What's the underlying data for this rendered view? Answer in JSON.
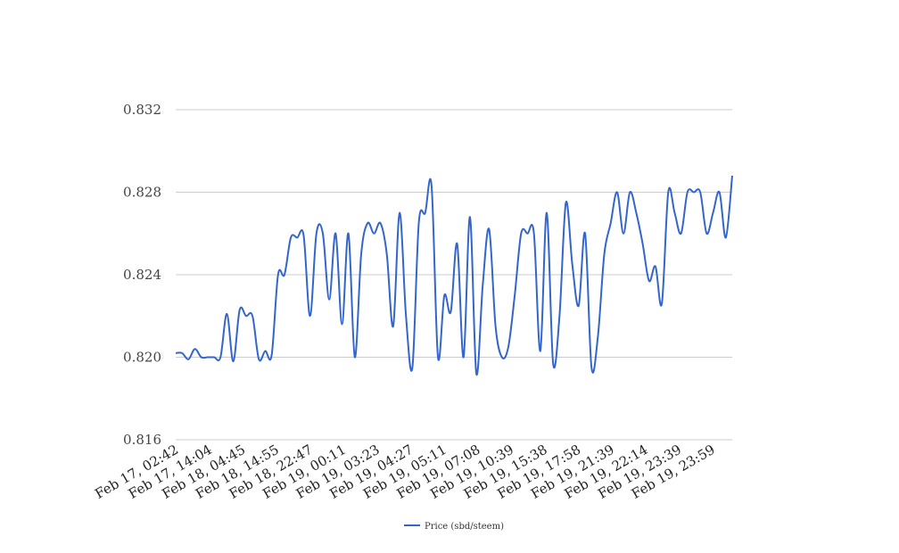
{
  "chart_data": {
    "type": "line",
    "title": "",
    "xlabel": "",
    "ylabel": "",
    "ylim": [
      0.816,
      0.832
    ],
    "yticks": [
      "0.816",
      "0.820",
      "0.824",
      "0.828",
      "0.832"
    ],
    "xtick_labels": [
      "Feb 17, 02:42",
      "Feb 17, 14:04",
      "Feb 18, 04:45",
      "Feb 18, 14:55",
      "Feb 18, 22:47",
      "Feb 19, 00:11",
      "Feb 19, 03:23",
      "Feb 19, 04:27",
      "Feb 19, 05:11",
      "Feb 19, 07:08",
      "Feb 19, 10:39",
      "Feb 19, 15:38",
      "Feb 19, 17:58",
      "Feb 19, 21:39",
      "Feb 19, 22:14",
      "Feb 19, 23:39",
      "Feb 19, 23:59"
    ],
    "grid": true,
    "legend_position": "bottom",
    "series": [
      {
        "name": "Price (sbd/steem)",
        "color": "#3366cc",
        "values": [
          0.8202,
          0.8202,
          0.8199,
          0.8204,
          0.82,
          0.82,
          0.82,
          0.82,
          0.8221,
          0.8198,
          0.8223,
          0.822,
          0.822,
          0.8199,
          0.8203,
          0.8201,
          0.824,
          0.824,
          0.8258,
          0.8258,
          0.8259,
          0.822,
          0.826,
          0.826,
          0.8228,
          0.826,
          0.8216,
          0.826,
          0.82,
          0.825,
          0.8265,
          0.826,
          0.8265,
          0.825,
          0.8215,
          0.827,
          0.822,
          0.8195,
          0.8265,
          0.827,
          0.8283,
          0.82,
          0.823,
          0.8222,
          0.8255,
          0.82,
          0.8268,
          0.8192,
          0.8235,
          0.8262,
          0.8215,
          0.82,
          0.8205,
          0.823,
          0.826,
          0.826,
          0.826,
          0.8203,
          0.827,
          0.8197,
          0.822,
          0.8275,
          0.8245,
          0.8225,
          0.826,
          0.8195,
          0.821,
          0.825,
          0.8265,
          0.828,
          0.826,
          0.828,
          0.827,
          0.8255,
          0.8237,
          0.8244,
          0.8226,
          0.828,
          0.827,
          0.826,
          0.828,
          0.828,
          0.828,
          0.826,
          0.827,
          0.828,
          0.8258,
          0.8288
        ]
      }
    ]
  }
}
